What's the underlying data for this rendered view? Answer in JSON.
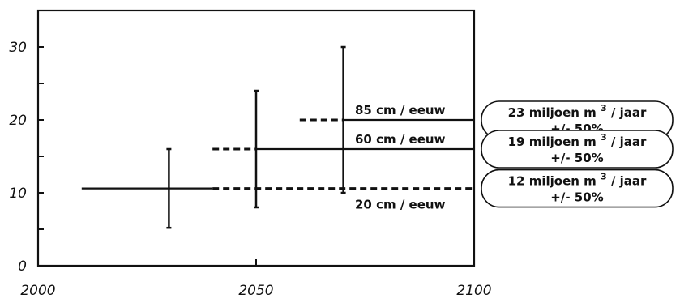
{
  "chart_data": {
    "type": "line",
    "x_range": [
      2000,
      2100
    ],
    "y_range": [
      0,
      35
    ],
    "x_ticks": [
      {
        "value": 2000,
        "label": "2000"
      },
      {
        "value": 2050,
        "label": "2050"
      },
      {
        "value": 2100,
        "label": "2100"
      }
    ],
    "y_ticks": [
      {
        "value": 0,
        "label": "0"
      },
      {
        "value": 10,
        "label": "10"
      },
      {
        "value": 20,
        "label": "20"
      },
      {
        "value": 30,
        "label": "30"
      }
    ],
    "y_minor_ticks": [
      5,
      15,
      25
    ],
    "grid": false,
    "trend_line": {
      "x": [
        2010,
        2040
      ],
      "y": 10.6
    },
    "error_bars": [
      {
        "x": 2030,
        "center": 10.6,
        "low": 5.2,
        "high": 16
      },
      {
        "x": 2050,
        "center": 16,
        "low": 8,
        "high": 24
      },
      {
        "x": 2070,
        "center": 20,
        "low": 10,
        "high": 30
      }
    ],
    "series": [
      {
        "name": "20 cm / eeuw",
        "dashed": [
          2040,
          2100
        ],
        "solid": null,
        "y": 10.6
      },
      {
        "name": "60 cm / eeuw",
        "dashed": [
          2040,
          2050
        ],
        "solid": [
          2050,
          2100
        ],
        "y": 16
      },
      {
        "name": "85 cm / eeuw",
        "dashed": [
          2060,
          2070
        ],
        "solid": [
          2070,
          2100
        ],
        "y": 20
      }
    ],
    "annotations": [
      {
        "line1_pre": "23 miljoen m",
        "sup": "3",
        "line1_post": "/ jaar",
        "line2": "+/- 50%",
        "y": 20
      },
      {
        "line1_pre": "19 miljoen m",
        "sup": "3",
        "line1_post": "/ jaar",
        "line2": "+/- 50%",
        "y": 16
      },
      {
        "line1_pre": "12 miljoen m",
        "sup": "3",
        "line1_post": "/ jaar",
        "line2": "+/- 50%",
        "y": 10.6
      }
    ]
  }
}
